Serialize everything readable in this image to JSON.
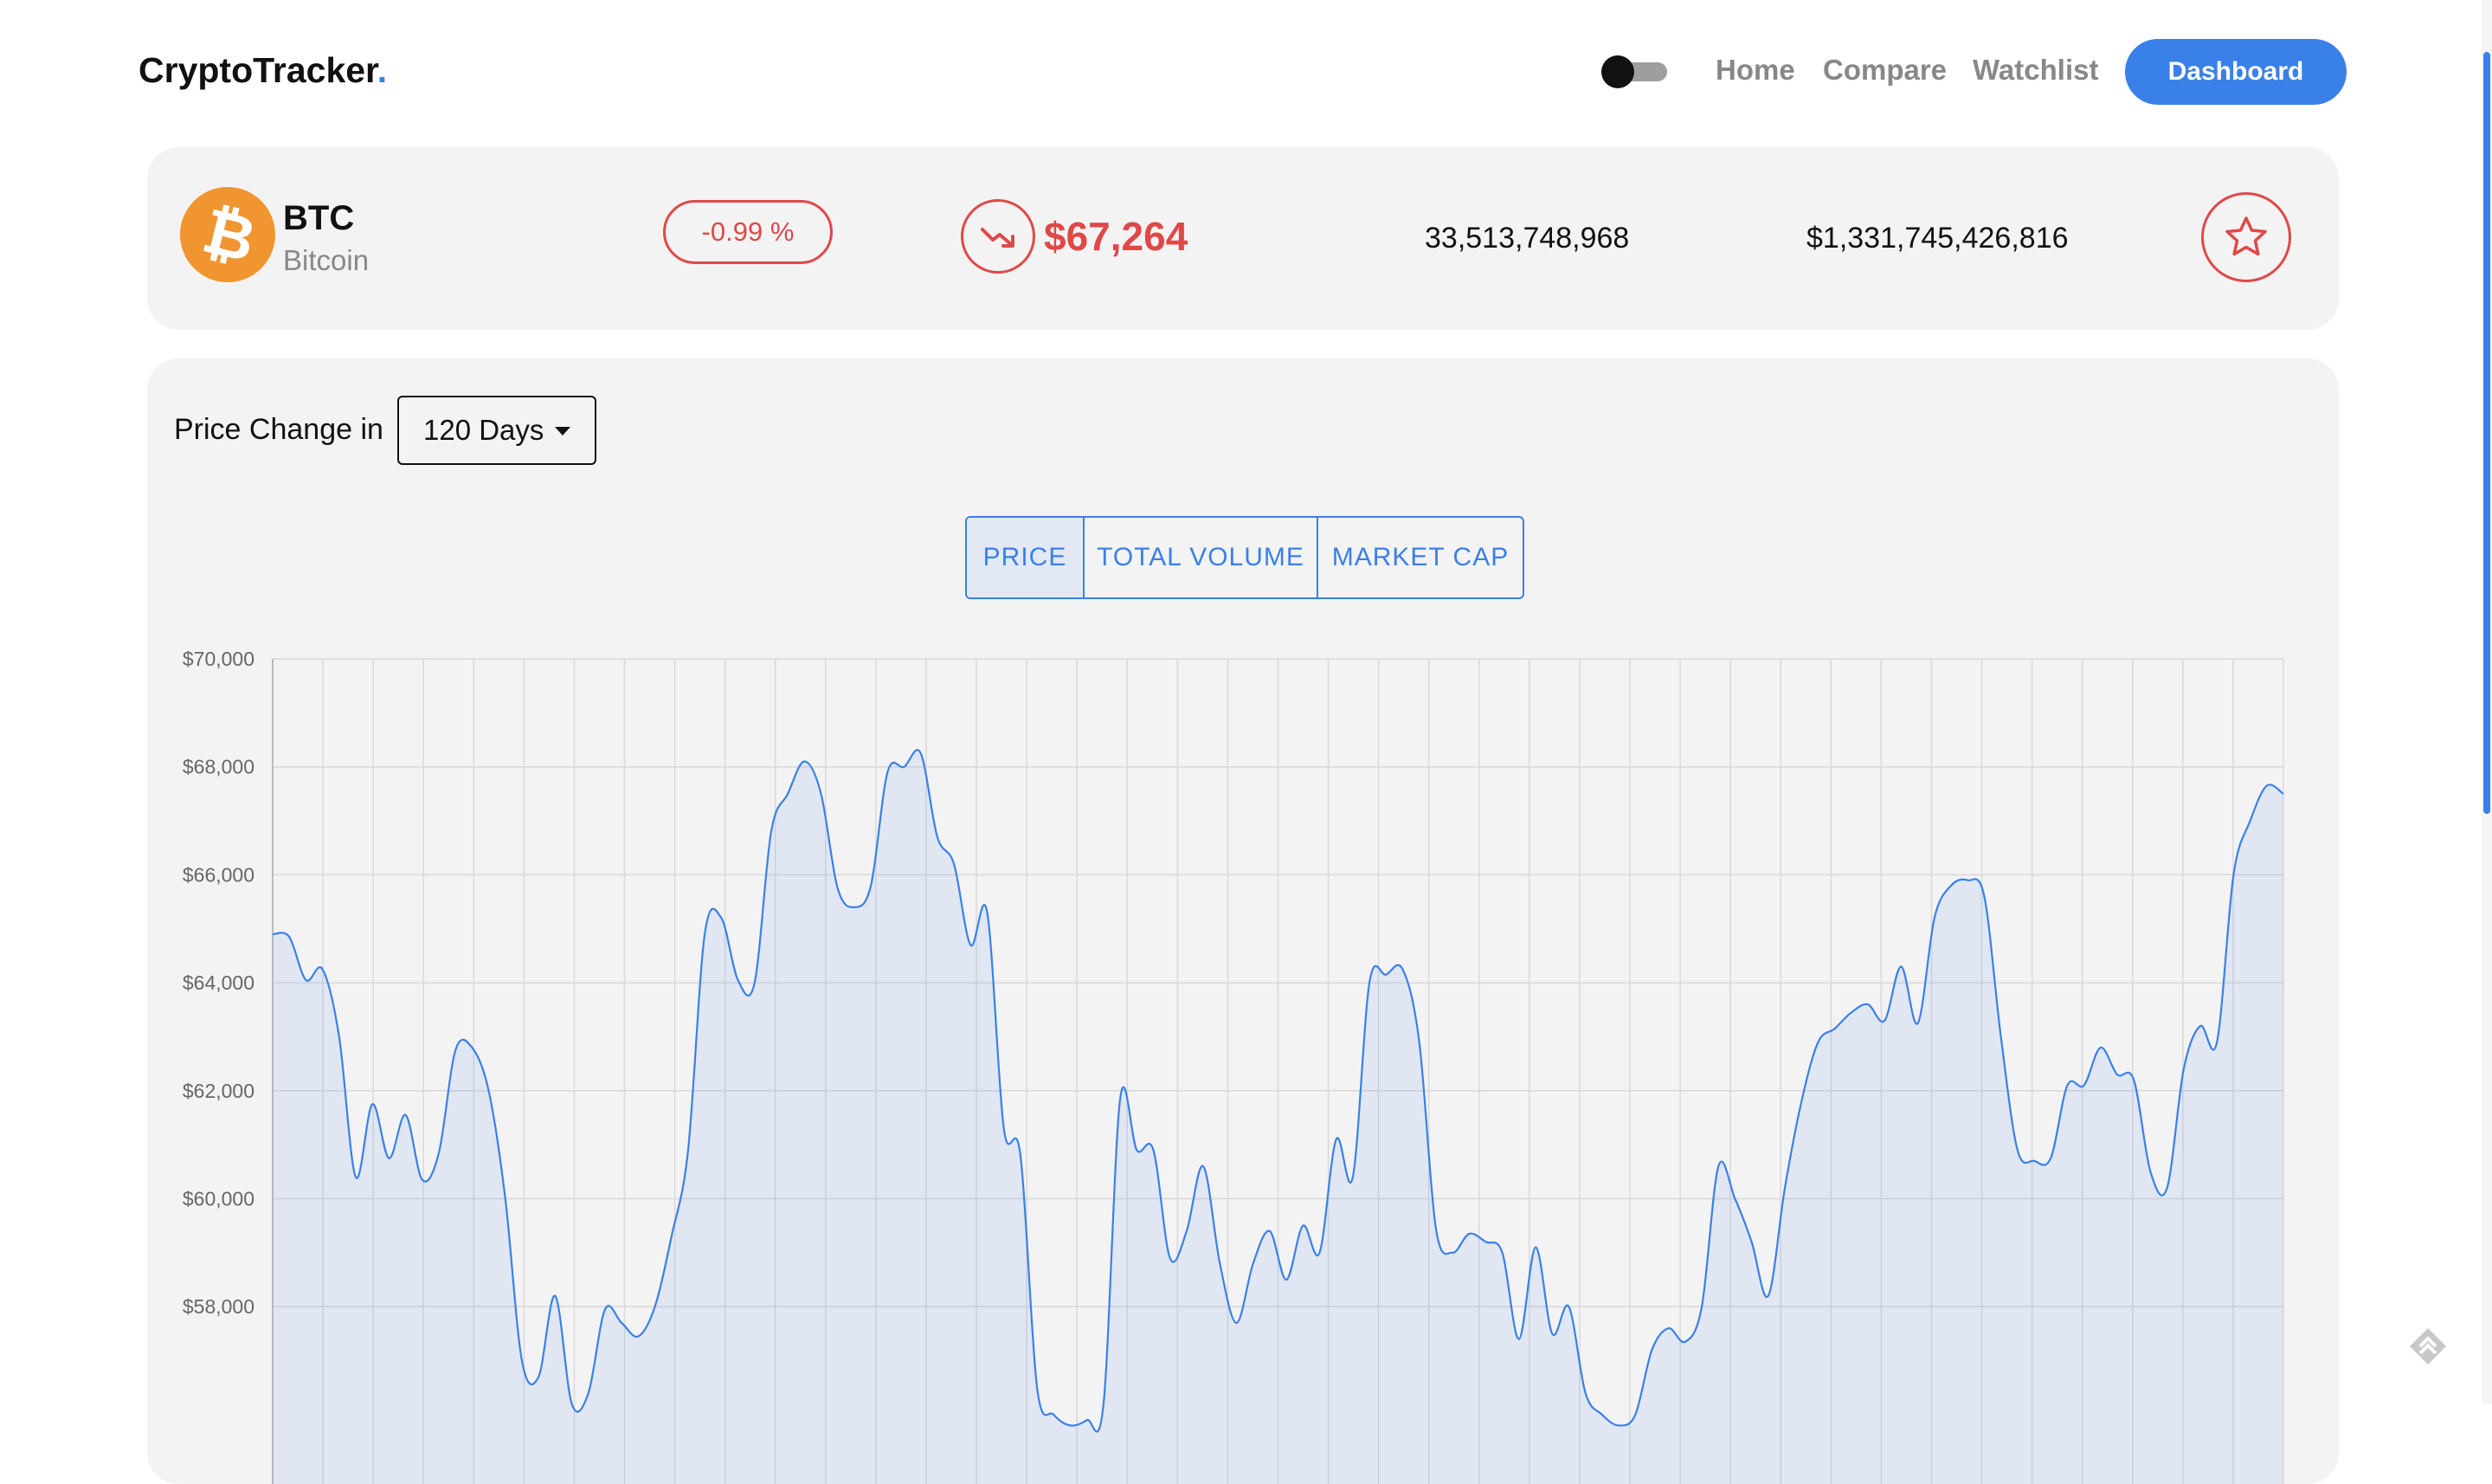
{
  "header": {
    "logo_text": "CryptoTracker",
    "logo_dot": ".",
    "nav": [
      "Home",
      "Compare",
      "Watchlist"
    ],
    "dashboard_label": "Dashboard"
  },
  "coin": {
    "symbol": "BTC",
    "name": "Bitcoin",
    "change": "-0.99 %",
    "price": "$67,264",
    "volume": "33,513,748,968",
    "market_cap": "$1,331,745,426,816",
    "logo_color": "#f0952f",
    "negative_color": "#e04848"
  },
  "chart_controls": {
    "label": "Price Change in",
    "selected_days": "120 Days",
    "tabs": [
      {
        "label": "PRICE",
        "active": true
      },
      {
        "label": "TOTAL VOLUME",
        "active": false
      },
      {
        "label": "MARKET CAP",
        "active": false
      }
    ]
  },
  "chart_data": {
    "type": "area",
    "title": "",
    "xlabel": "",
    "ylabel": "",
    "y_tick_labels": [
      "$70,000",
      "$68,000",
      "$66,000",
      "$64,000",
      "$62,000",
      "$60,000",
      "$58,000"
    ],
    "y_ticks": [
      70000,
      68000,
      66000,
      64000,
      62000,
      60000,
      58000
    ],
    "ylim_visible": [
      56300,
      70000
    ],
    "grid": true,
    "line_color": "#3a80e9",
    "series": [
      {
        "values": [
          64900,
          64850,
          64050,
          64250,
          63000,
          60400,
          61750,
          60750,
          61550,
          60350,
          60850,
          62750,
          62800,
          62000,
          60000,
          57000,
          56700,
          58200,
          56200,
          56400,
          57950,
          57700,
          57450,
          58000,
          59300,
          60900,
          64900,
          65200,
          64050,
          64000,
          66800,
          67500,
          68100,
          67500,
          65750,
          65400,
          65800,
          67900,
          68000,
          68250,
          66700,
          66200,
          64700,
          65300,
          61300,
          60800,
          56500,
          56000,
          55800,
          55900,
          56200,
          61850,
          60900,
          60900,
          58900,
          59400,
          60600,
          58800,
          57700,
          58800,
          59400,
          58500,
          59500,
          59000,
          61100,
          60400,
          64000,
          64150,
          64250,
          62900,
          59450,
          59000,
          59350,
          59200,
          59000,
          57400,
          59100,
          57500,
          58000,
          56400,
          56000,
          55800,
          56000,
          57200,
          57600,
          57350,
          58000,
          60600,
          60000,
          59200,
          58200,
          60200,
          61800,
          62900,
          63150,
          63450,
          63600,
          63300,
          64300,
          63250,
          65200,
          65800,
          65900,
          65600,
          63000,
          60900,
          60700,
          60750,
          62100,
          62100,
          62800,
          62300,
          62200,
          60500,
          60200,
          62400,
          63200,
          62900,
          66000,
          67000,
          67650,
          67500
        ]
      }
    ]
  }
}
